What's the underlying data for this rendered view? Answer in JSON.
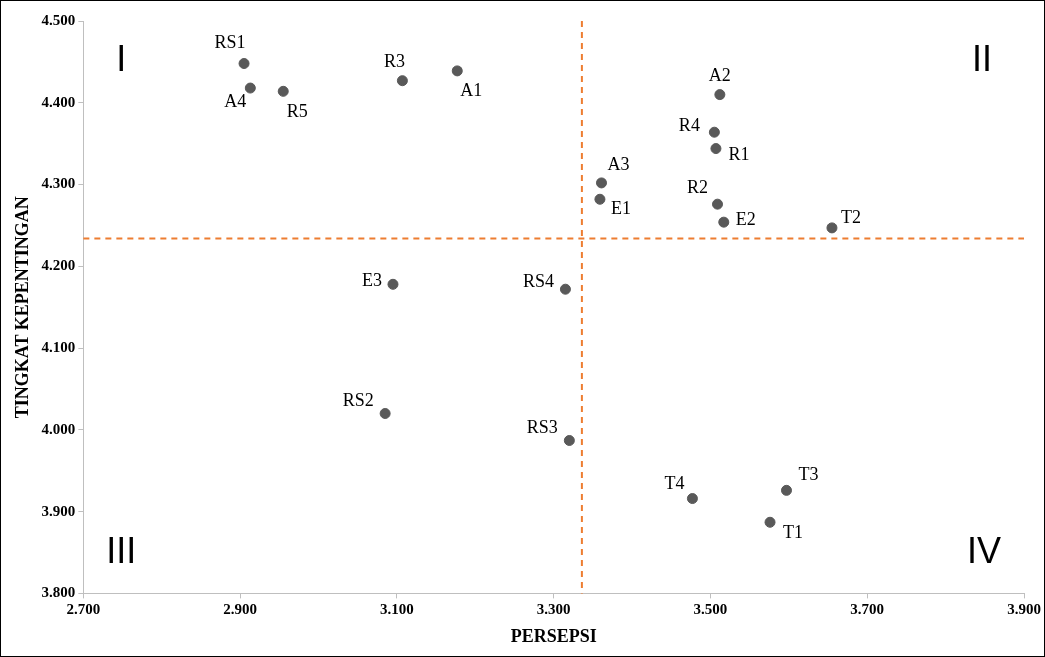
{
  "chart_data": {
    "type": "scatter",
    "xlabel": "PERSEPSI",
    "ylabel": "TINGKAT KEPENTINGAN",
    "x": [
      2.905,
      2.913,
      2.955,
      3.107,
      3.177,
      3.512,
      3.505,
      3.507,
      3.361,
      3.359,
      3.509,
      3.517,
      3.655,
      3.095,
      3.315,
      3.085,
      3.32,
      3.477,
      3.597,
      3.576
    ],
    "values": [
      4.448,
      4.418,
      4.414,
      4.427,
      4.439,
      4.41,
      4.364,
      4.344,
      4.302,
      4.282,
      4.276,
      4.254,
      4.247,
      4.178,
      4.172,
      4.02,
      3.987,
      3.916,
      3.926,
      3.887
    ],
    "color": "#595959",
    "marker": "circle",
    "grid": false,
    "legend": false,
    "xlim": [
      2.7,
      3.9
    ],
    "xticks": [
      {
        "value": 2.7,
        "label": "2.700"
      },
      {
        "value": 2.9,
        "label": "2.900"
      },
      {
        "value": 3.1,
        "label": "3.100"
      },
      {
        "value": 3.3,
        "label": "3.300"
      },
      {
        "value": 3.5,
        "label": "3.500"
      },
      {
        "value": 3.7,
        "label": "3.700"
      },
      {
        "value": 3.9,
        "label": "3.900"
      }
    ],
    "ylim": [
      3.8,
      4.5
    ],
    "yticks": [
      {
        "value": 3.8,
        "label": "3.800"
      },
      {
        "value": 3.9,
        "label": "3.900"
      },
      {
        "value": 4.0,
        "label": "4.000"
      },
      {
        "value": 4.1,
        "label": "4.100"
      },
      {
        "value": 4.2,
        "label": "4.200"
      },
      {
        "value": 4.3,
        "label": "4.300"
      },
      {
        "value": 4.4,
        "label": "4.400"
      },
      {
        "value": 4.5,
        "label": "4.500"
      }
    ],
    "ref_lines": [
      {
        "axis": "x",
        "value": 3.336,
        "color": "#ed7d31",
        "line_style": "dashed"
      },
      {
        "axis": "y",
        "value": 4.234,
        "color": "#ed7d31",
        "line_style": "dashed"
      }
    ],
    "annotations": [
      "I",
      "II",
      "III",
      "IV",
      {
        "text": "RS1",
        "x": 2.905,
        "y": 4.448
      },
      {
        "text": "A4",
        "x": 2.913,
        "y": 4.418
      },
      {
        "text": "R5",
        "x": 2.955,
        "y": 4.414
      },
      {
        "text": "R3",
        "x": 3.107,
        "y": 4.427
      },
      {
        "text": "A1",
        "x": 3.177,
        "y": 4.439
      },
      {
        "text": "A2",
        "x": 3.512,
        "y": 4.41
      },
      {
        "text": "R4",
        "x": 3.505,
        "y": 4.364
      },
      {
        "text": "R1",
        "x": 3.507,
        "y": 4.344
      },
      {
        "text": "A3",
        "x": 3.361,
        "y": 4.302
      },
      {
        "text": "E1",
        "x": 3.359,
        "y": 4.282
      },
      {
        "text": "R2",
        "x": 3.509,
        "y": 4.276
      },
      {
        "text": "E2",
        "x": 3.517,
        "y": 4.254
      },
      {
        "text": "T2",
        "x": 3.655,
        "y": 4.247
      },
      {
        "text": "E3",
        "x": 3.095,
        "y": 4.178
      },
      {
        "text": "RS4",
        "x": 3.315,
        "y": 4.172
      },
      {
        "text": "RS2",
        "x": 3.085,
        "y": 4.02
      },
      {
        "text": "RS3",
        "x": 3.32,
        "y": 3.987
      },
      {
        "text": "T4",
        "x": 3.477,
        "y": 3.916
      },
      {
        "text": "T3",
        "x": 3.597,
        "y": 3.926
      },
      {
        "text": "T1",
        "x": 3.576,
        "y": 3.887
      }
    ]
  }
}
